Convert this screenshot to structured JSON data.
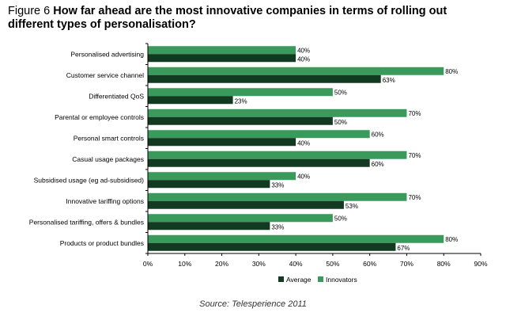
{
  "title": {
    "figure_label": "Figure 6",
    "text": "How far ahead are the most innovative companies in terms of rolling out different types of personalisation?"
  },
  "source": "Source: Telesperience 2011",
  "colors": {
    "innovators": "#3a9a5b",
    "average": "#123a20",
    "axis": "#000000"
  },
  "chart_data": {
    "type": "bar",
    "orientation": "horizontal",
    "categories": [
      "Personalised advertising",
      "Customer service channel",
      "Differentiated QoS",
      "Parental or employee controls",
      "Personal smart controls",
      "Casual usage packages",
      "Subsidised usage (eg ad-subsidised)",
      "Innovative tariffing options",
      "Personalised tariffing, offers & bundles",
      "Products or product bundles"
    ],
    "series": [
      {
        "name": "Innovators",
        "values": [
          40,
          80,
          50,
          70,
          60,
          70,
          40,
          70,
          50,
          80
        ]
      },
      {
        "name": "Average",
        "values": [
          40,
          63,
          23,
          50,
          40,
          60,
          33,
          53,
          33,
          67
        ]
      }
    ],
    "xlim": [
      0,
      90
    ],
    "xticks": [
      0,
      10,
      20,
      30,
      40,
      50,
      60,
      70,
      80,
      90
    ],
    "tick_suffix": "%",
    "legend": [
      "Average",
      "Innovators"
    ],
    "legend_position": "bottom"
  }
}
